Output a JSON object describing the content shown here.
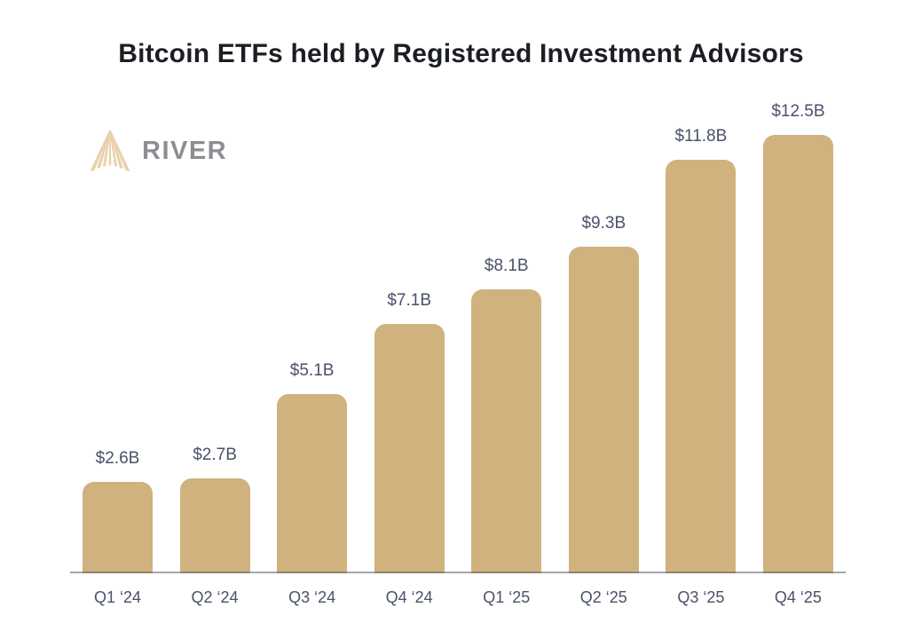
{
  "title": "Bitcoin ETFs held by Registered Investment Advisors",
  "logo": {
    "brand": "RIVER",
    "icon": "river-fan-icon"
  },
  "colors": {
    "background": "#ffffff",
    "title_text": "#1b1e23",
    "label_text": "#4a5169",
    "bar": "#d0b27e",
    "axis_line": "#9ba0a7",
    "logo_text": "#8b8e92",
    "logo_icon": "#e8d2ac"
  },
  "chart_data": {
    "type": "bar",
    "title": "Bitcoin ETFs held by Registered Investment Advisors",
    "categories": [
      "Q1 ‘24",
      "Q2 ‘24",
      "Q3 ‘24",
      "Q4 ‘24",
      "Q1 ‘25",
      "Q2 ‘25",
      "Q3 ‘25",
      "Q4 ‘25"
    ],
    "values": [
      2.6,
      2.7,
      5.1,
      7.1,
      8.1,
      9.3,
      11.8,
      12.5
    ],
    "value_labels": [
      "$2.6B",
      "$2.7B",
      "$5.1B",
      "$7.1B",
      "$8.1B",
      "$9.3B",
      "$11.8B",
      "$12.5B"
    ],
    "xlabel": "",
    "ylabel": "",
    "ylim": [
      0,
      12.5
    ],
    "unit": "USD billions",
    "grid": false,
    "legend": false,
    "bar_color": "#d0b27e"
  }
}
